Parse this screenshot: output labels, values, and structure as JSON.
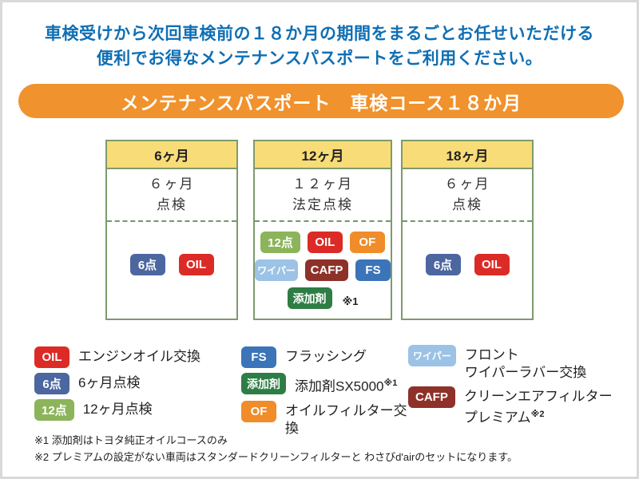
{
  "intro": {
    "line1": "車検受けから次回車検前の１８か月の期間をまるごとお任せいただける",
    "line2": "便利でお得なメンテナンスパスポートをご利用ください。"
  },
  "banner": {
    "title": "メンテナンスパスポート　車検コース１８か月"
  },
  "colors": {
    "intro_text": "#0f6fb4",
    "banner_bg": "#f0922d",
    "course_header_bg": "#f8dc78",
    "box_border": "#7e9a6c",
    "dashed_line": "#6b9b66",
    "page_frame": "#d9d9d9"
  },
  "courses": [
    {
      "header": "6ヶ月",
      "inspection_line1": "６ヶ月",
      "inspection_line2": "点検",
      "badge_rows": [
        [
          {
            "label": "6点",
            "color": "#4c66a0"
          },
          {
            "label": "OIL",
            "color": "#dc2b26"
          }
        ]
      ],
      "note": ""
    },
    {
      "header": "12ヶ月",
      "inspection_line1": "１２ヶ月",
      "inspection_line2": "法定点検",
      "badge_rows": [
        [
          {
            "label": "12点",
            "color": "#8cb45a"
          },
          {
            "label": "OIL",
            "color": "#dc2b26"
          },
          {
            "label": "OF",
            "color": "#f08c2a"
          }
        ],
        [
          {
            "label": "ワイパー",
            "color": "#9cc3e5"
          },
          {
            "label": "CAFP",
            "color": "#8e3129"
          },
          {
            "label": "FS",
            "color": "#3b74b8"
          }
        ],
        [
          {
            "label": "添加剤",
            "color": "#2e7d44"
          }
        ]
      ],
      "note": "※1"
    },
    {
      "header": "18ヶ月",
      "inspection_line1": "６ヶ月",
      "inspection_line2": "点検",
      "badge_rows": [
        [
          {
            "label": "6点",
            "color": "#4c66a0"
          },
          {
            "label": "OIL",
            "color": "#dc2b26"
          }
        ]
      ],
      "note": ""
    }
  ],
  "legend": {
    "col1": [
      {
        "badge": "OIL",
        "color": "#dc2b26",
        "line1": "エンジンオイル交換"
      },
      {
        "badge": "6点",
        "color": "#4c66a0",
        "line1": "6ヶ月点検"
      },
      {
        "badge": "12点",
        "color": "#8cb45a",
        "line1": "12ヶ月点検"
      }
    ],
    "col2": [
      {
        "badge": "FS",
        "color": "#3b74b8",
        "line1": "フラッシング"
      },
      {
        "badge": "添加剤",
        "color": "#2e7d44",
        "line1": "添加剤SX5000",
        "sup": "※1"
      },
      {
        "badge": "OF",
        "color": "#f08c2a",
        "line1": "オイルフィルター交換"
      }
    ],
    "col3": [
      {
        "badge": "ワイパー",
        "color": "#9cc3e5",
        "line1": "フロント",
        "line2": "ワイパーラバー交換"
      },
      {
        "badge": "CAFP",
        "color": "#8e3129",
        "line1": "クリーンエアフィルター",
        "line2": "プレミアム",
        "sup": "※2"
      }
    ]
  },
  "footnotes": [
    "※1 添加剤はトヨタ純正オイルコースのみ",
    "※2 プレミアムの設定がない車両はスタンダードクリーンフィルターと わさびd'airのセットになります。"
  ]
}
